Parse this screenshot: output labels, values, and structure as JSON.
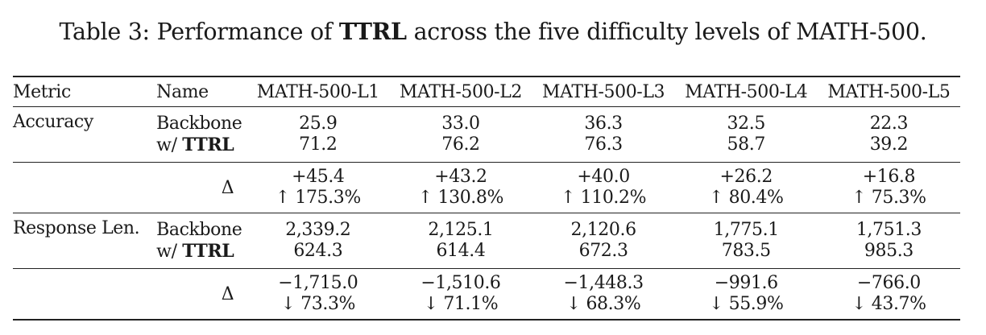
{
  "caption": {
    "prefix": "Table 3: Performance of ",
    "method": "TTRL",
    "suffix": " across the five difficulty levels of MATH-500."
  },
  "header": {
    "metric": "Metric",
    "name": "Name",
    "levels": [
      "MATH-500-L1",
      "MATH-500-L2",
      "MATH-500-L3",
      "MATH-500-L4",
      "MATH-500-L5"
    ]
  },
  "rows": {
    "accuracy": {
      "metric": "Accuracy",
      "backbone_label": "Backbone",
      "ttrl_prefix": "w/ ",
      "ttrl_label": "TTRL",
      "backbone": [
        "25.9",
        "33.0",
        "36.3",
        "32.5",
        "22.3"
      ],
      "ttrl": [
        "71.2",
        "76.2",
        "76.3",
        "58.7",
        "39.2"
      ],
      "delta_label": "Δ",
      "delta": [
        "+45.4",
        "+43.2",
        "+40.0",
        "+26.2",
        "+16.8"
      ],
      "delta_pct": [
        "↑ 175.3%",
        "↑ 130.8%",
        "↑ 110.2%",
        "↑ 80.4%",
        "↑ 75.3%"
      ]
    },
    "response_len": {
      "metric": "Response Len.",
      "backbone_label": "Backbone",
      "ttrl_prefix": "w/ ",
      "ttrl_label": "TTRL",
      "backbone": [
        "2,339.2",
        "2,125.1",
        "2,120.6",
        "1,775.1",
        "1,751.3"
      ],
      "ttrl": [
        "624.3",
        "614.4",
        "672.3",
        "783.5",
        "985.3"
      ],
      "delta_label": "Δ",
      "delta": [
        "−1,715.0",
        "−1,510.6",
        "−1,448.3",
        "−991.6",
        "−766.0"
      ],
      "delta_pct": [
        "↓ 73.3%",
        "↓ 71.1%",
        "↓ 68.3%",
        "↓ 55.9%",
        "↓ 43.7%"
      ]
    }
  }
}
